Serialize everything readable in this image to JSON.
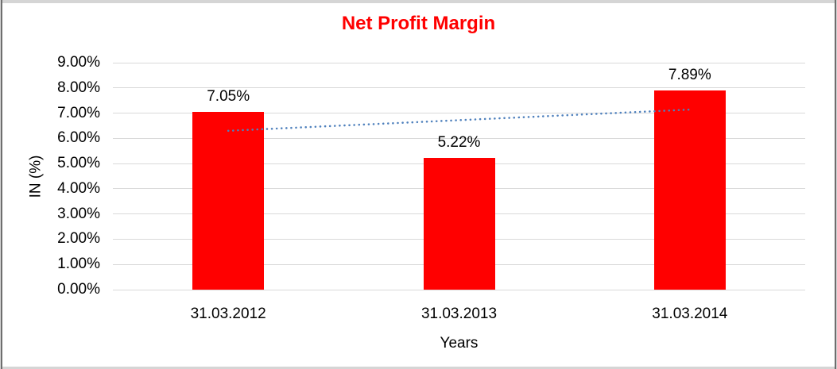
{
  "chart_data": {
    "type": "bar",
    "title": "Net Profit Margin",
    "xlabel": "Years",
    "ylabel": "IN (%)",
    "categories": [
      "31.03.2012",
      "31.03.2013",
      "31.03.2014"
    ],
    "values": [
      7.05,
      5.22,
      7.89
    ],
    "value_labels": [
      "7.05%",
      "5.22%",
      "7.89%"
    ],
    "ylim": [
      0,
      9
    ],
    "ytick_labels": [
      "0.00%",
      "1.00%",
      "2.00%",
      "3.00%",
      "4.00%",
      "5.00%",
      "6.00%",
      "7.00%",
      "8.00%",
      "9.00%"
    ],
    "grid": true,
    "legend": "none",
    "trendline": {
      "type": "linear",
      "style": "dotted",
      "start_value": 6.3,
      "end_value": 7.14
    },
    "colors": {
      "bar": "#FF0000",
      "title": "#FF0000",
      "gridline": "#D9D9D9",
      "trendline": "#4F81BD",
      "text": "#000000"
    }
  }
}
